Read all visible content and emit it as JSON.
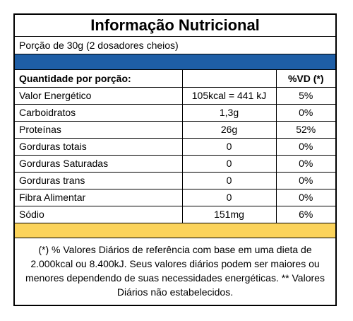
{
  "title": "Informação Nutricional",
  "portion": "Porção de 30g (2 dosadores cheios)",
  "header": {
    "quantity_label": "Quantidade por porção:",
    "amount_label": "",
    "vd_label": "%VD (*)"
  },
  "rows": [
    {
      "name": "Valor Energético",
      "amount": "105kcal = 441 kJ",
      "vd": "5%"
    },
    {
      "name": "Carboidratos",
      "amount": "1,3g",
      "vd": "0%"
    },
    {
      "name": "Proteínas",
      "amount": "26g",
      "vd": "52%"
    },
    {
      "name": "Gorduras totais",
      "amount": "0",
      "vd": "0%"
    },
    {
      "name": "Gorduras Saturadas",
      "amount": "0",
      "vd": "0%"
    },
    {
      "name": "Gorduras trans",
      "amount": "0",
      "vd": "0%"
    },
    {
      "name": "Fibra Alimentar",
      "amount": "0",
      "vd": "0%"
    },
    {
      "name": "Sódio",
      "amount": "151mg",
      "vd": "6%"
    }
  ],
  "footnote": "(*) % Valores Diários de referência com base em uma dieta de 2.000kcal ou 8.400kJ. Seus valores diários podem ser maiores ou menores dependendo de suas necessidades energéticas. ** Valores Diários não estabelecidos.",
  "colors": {
    "band_blue": "#1e5ea6",
    "band_yellow": "#fbd35b",
    "border": "#000000"
  }
}
